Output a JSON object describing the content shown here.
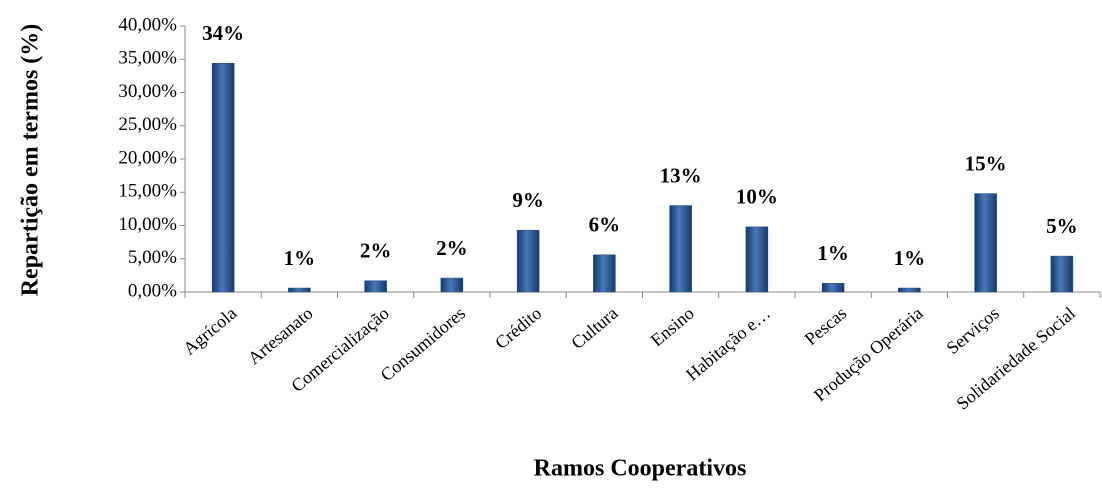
{
  "chart_data": {
    "type": "bar",
    "x_label": "Ramos Cooperativos",
    "y_label": "Repartição em termos (%)",
    "categories": [
      "Agrícola",
      "Artesanato",
      "Comercialização",
      "Consumidores",
      "Crédito",
      "Cultura",
      "Ensino",
      "Habitação e…",
      "Pescas",
      "Produção Operária",
      "Serviços",
      "Solidariedade Social"
    ],
    "values": [
      34.4,
      0.6,
      1.7,
      2.1,
      9.3,
      5.6,
      13,
      9.8,
      1.3,
      0.6,
      14.8,
      5.4
    ],
    "value_labels": [
      "34%",
      "1%",
      "2%",
      "2%",
      "9%",
      "6%",
      "13%",
      "10%",
      "1%",
      "1%",
      "15%",
      "5%"
    ],
    "color": "#1f4e8c",
    "ylim": [
      0,
      40
    ],
    "yticks": [
      {
        "value": 0,
        "label": "0,00%"
      },
      {
        "value": 5,
        "label": "5,00%"
      },
      {
        "value": 10,
        "label": "10,00%"
      },
      {
        "value": 15,
        "label": "15,00%"
      },
      {
        "value": 20,
        "label": "20,00%"
      },
      {
        "value": 25,
        "label": "25,00%"
      },
      {
        "value": 30,
        "label": "30,00%"
      },
      {
        "value": 35,
        "label": "35,00%"
      },
      {
        "value": 40,
        "label": "40,00%"
      }
    ]
  }
}
